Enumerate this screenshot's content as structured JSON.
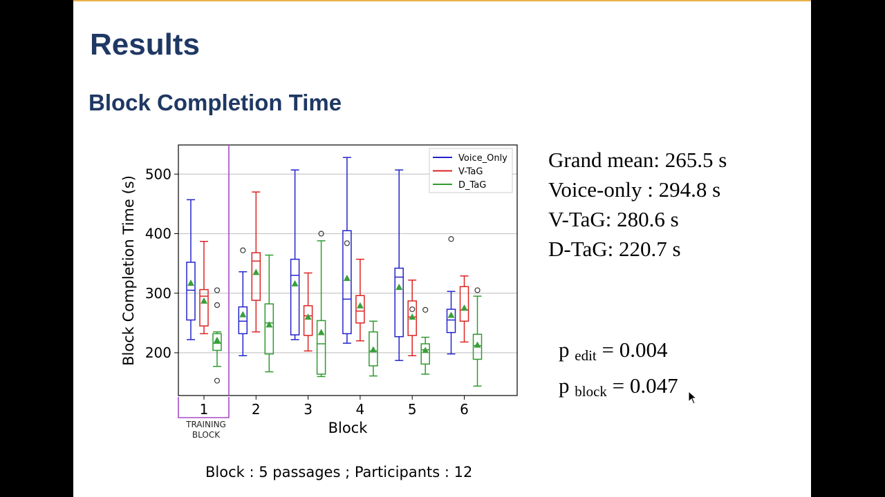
{
  "slide": {
    "title": "Results",
    "subtitle": "Block Completion Time",
    "stats": [
      "Grand mean: 265.5 s",
      "Voice-only : 294.8 s",
      "V-TaG: 280.6 s",
      "D-TaG: 220.7 s"
    ],
    "p_edit": {
      "prefix": "p",
      "sub": "edit",
      "value": "= 0.004"
    },
    "p_block": {
      "prefix": "p",
      "sub": "block",
      "value": "= 0.047"
    },
    "footnote": "Block : 5 passages ; Participants : 12"
  },
  "colors": {
    "title": "#1f3864",
    "accent_line": "#e7b24a",
    "training_marker": "#a64ac9",
    "mean_marker": "#3aa03a"
  },
  "chart_data": {
    "type": "box",
    "xlabel": "Block",
    "ylabel": "Block Completion Time (s)",
    "categories": [
      "1",
      "2",
      "3",
      "4",
      "5",
      "6"
    ],
    "yticks": [
      200,
      300,
      400,
      500
    ],
    "ylim": [
      130,
      550
    ],
    "grid": "horizontal",
    "legend_position": "top-right",
    "annotation": {
      "category": "1",
      "label_lines": [
        "TRAINING",
        "BLOCK"
      ]
    },
    "series": [
      {
        "name": "Voice_Only",
        "color": "#2222cc",
        "boxes": [
          {
            "whislo": 222,
            "q1": 255,
            "med": 305,
            "q3": 352,
            "whishi": 457,
            "mean": 316,
            "fliers": []
          },
          {
            "whislo": 195,
            "q1": 232,
            "med": 253,
            "q3": 277,
            "whishi": 336,
            "mean": 263,
            "fliers": [
              372
            ]
          },
          {
            "whislo": 222,
            "q1": 230,
            "med": 330,
            "q3": 357,
            "whishi": 507,
            "mean": 315,
            "fliers": []
          },
          {
            "whislo": 216,
            "q1": 232,
            "med": 290,
            "q3": 405,
            "whishi": 528,
            "mean": 324,
            "fliers": [
              384
            ]
          },
          {
            "whislo": 187,
            "q1": 227,
            "med": 327,
            "q3": 342,
            "whishi": 507,
            "mean": 309,
            "fliers": []
          },
          {
            "whislo": 198,
            "q1": 234,
            "med": 255,
            "q3": 273,
            "whishi": 303,
            "mean": 262,
            "fliers": [
              391
            ]
          }
        ]
      },
      {
        "name": "V-TaG",
        "color": "#dd2222",
        "boxes": [
          {
            "whislo": 232,
            "q1": 245,
            "med": 295,
            "q3": 306,
            "whishi": 387,
            "mean": 286,
            "fliers": []
          },
          {
            "whislo": 235,
            "q1": 288,
            "med": 354,
            "q3": 368,
            "whishi": 470,
            "mean": 334,
            "fliers": []
          },
          {
            "whislo": 203,
            "q1": 229,
            "med": 262,
            "q3": 279,
            "whishi": 334,
            "mean": 259,
            "fliers": []
          },
          {
            "whislo": 220,
            "q1": 250,
            "med": 270,
            "q3": 296,
            "whishi": 357,
            "mean": 278,
            "fliers": []
          },
          {
            "whislo": 195,
            "q1": 229,
            "med": 260,
            "q3": 287,
            "whishi": 322,
            "mean": 259,
            "fliers": [
              273
            ]
          },
          {
            "whislo": 218,
            "q1": 253,
            "med": 272,
            "q3": 311,
            "whishi": 329,
            "mean": 274,
            "fliers": []
          }
        ]
      },
      {
        "name": "D_TaG",
        "color": "#2e9a2e",
        "boxes": [
          {
            "whislo": 177,
            "q1": 204,
            "med": 216,
            "q3": 232,
            "whishi": 235,
            "mean": 220,
            "fliers": [
              305,
              280,
              153
            ]
          },
          {
            "whislo": 168,
            "q1": 198,
            "med": 250,
            "q3": 282,
            "whishi": 364,
            "mean": 246,
            "fliers": []
          },
          {
            "whislo": 160,
            "q1": 164,
            "med": 215,
            "q3": 254,
            "whishi": 388,
            "mean": 233,
            "fliers": [
              400
            ]
          },
          {
            "whislo": 161,
            "q1": 178,
            "med": 203,
            "q3": 235,
            "whishi": 253,
            "mean": 204,
            "fliers": []
          },
          {
            "whislo": 164,
            "q1": 181,
            "med": 205,
            "q3": 215,
            "whishi": 226,
            "mean": 203,
            "fliers": [
              272
            ]
          },
          {
            "whislo": 144,
            "q1": 189,
            "med": 212,
            "q3": 231,
            "whishi": 295,
            "mean": 212,
            "fliers": [
              305
            ]
          }
        ]
      }
    ]
  }
}
